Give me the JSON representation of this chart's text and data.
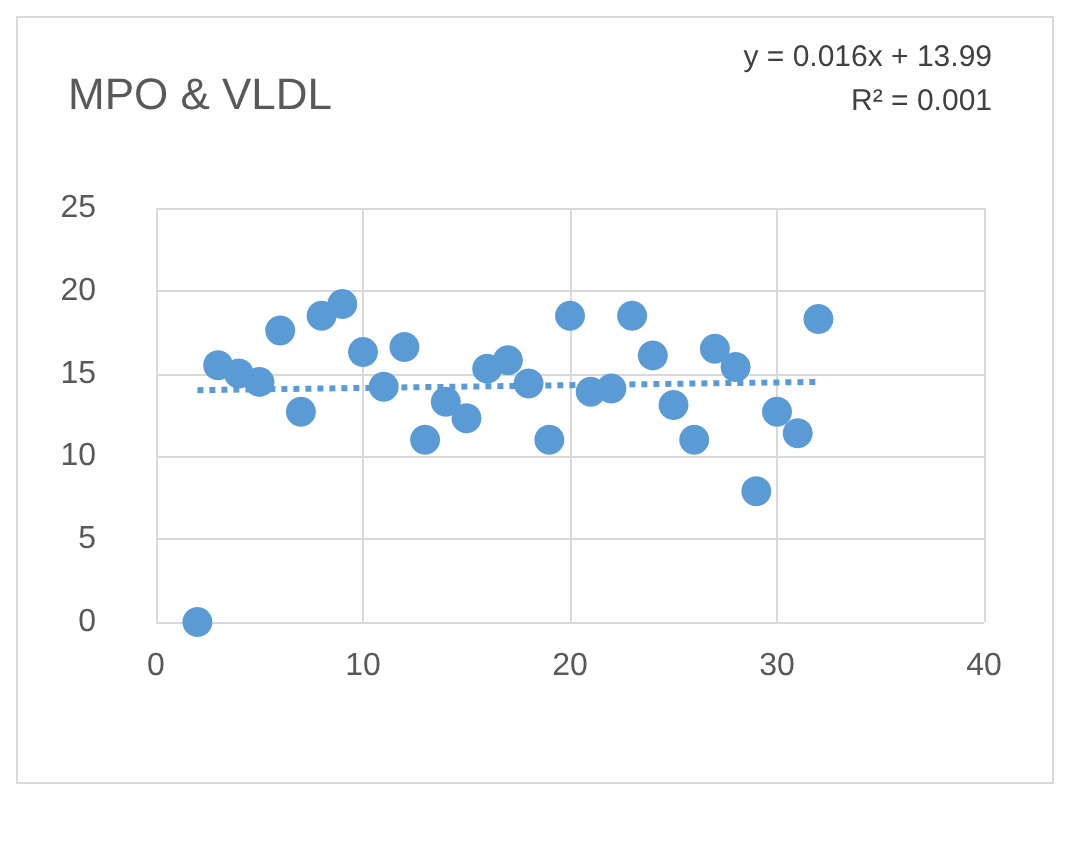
{
  "chart_data": {
    "type": "scatter",
    "title": "MPO & VLDL",
    "annotations": [
      "y = 0.016x + 13.99",
      "R² = 0.001"
    ],
    "xlim": [
      0,
      40
    ],
    "xticks": [
      0,
      10,
      20,
      30,
      40
    ],
    "ylim": [
      0,
      25
    ],
    "yticks": [
      0,
      5,
      10,
      15,
      20,
      25
    ],
    "grid": true,
    "marker": "circle",
    "series": [
      {
        "color": "#5b9bd5",
        "x": [
          2,
          3,
          4,
          5,
          6,
          7,
          8,
          9,
          10,
          11,
          12,
          13,
          14,
          15,
          16,
          17,
          18,
          19,
          20,
          21,
          22,
          23,
          24,
          25,
          26,
          27,
          28,
          29,
          30,
          31,
          32
        ],
        "values": [
          0,
          15.5,
          15,
          14.5,
          17.6,
          12.7,
          18.5,
          19.2,
          16.3,
          14.2,
          16.6,
          11,
          13.3,
          12.3,
          15.3,
          15.8,
          14.4,
          11,
          18.5,
          13.9,
          14.1,
          18.5,
          16.1,
          13.1,
          11,
          16.5,
          15.4,
          7.9,
          12.7,
          11.4,
          18.3
        ]
      },
      {
        "type": "line",
        "color": "#5b9bd5",
        "line_style": "dotted",
        "marker": "none",
        "x": [
          2,
          32
        ],
        "values": [
          14.0,
          14.5
        ]
      }
    ]
  }
}
